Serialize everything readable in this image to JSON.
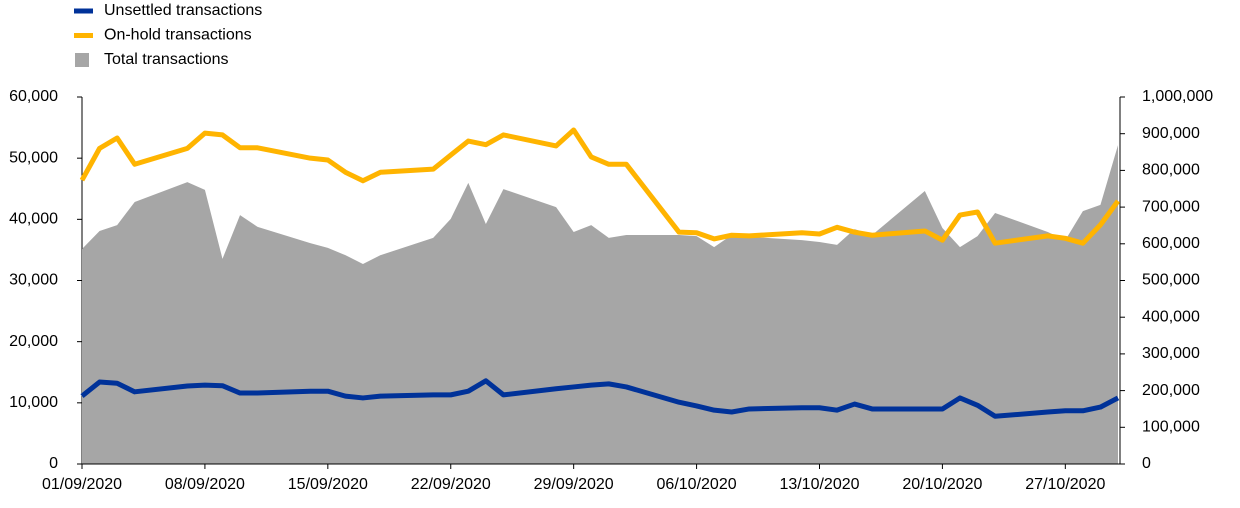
{
  "chart_data": {
    "type": "line",
    "x": [
      "01/09/2020",
      "02/09/2020",
      "03/09/2020",
      "04/09/2020",
      "07/09/2020",
      "08/09/2020",
      "09/09/2020",
      "10/09/2020",
      "11/09/2020",
      "14/09/2020",
      "15/09/2020",
      "16/09/2020",
      "17/09/2020",
      "18/09/2020",
      "21/09/2020",
      "22/09/2020",
      "23/09/2020",
      "24/09/2020",
      "25/09/2020",
      "28/09/2020",
      "29/09/2020",
      "30/09/2020",
      "01/10/2020",
      "02/10/2020",
      "05/10/2020",
      "06/10/2020",
      "07/10/2020",
      "08/10/2020",
      "09/10/2020",
      "12/10/2020",
      "13/10/2020",
      "14/10/2020",
      "15/10/2020",
      "16/10/2020",
      "19/10/2020",
      "20/10/2020",
      "21/10/2020",
      "22/10/2020",
      "23/10/2020",
      "26/10/2020",
      "27/10/2020",
      "28/10/2020",
      "29/10/2020",
      "30/10/2020"
    ],
    "series": [
      {
        "name": "Unsettled transactions",
        "color": "#003299",
        "values": [
          11100,
          13400,
          13200,
          11800,
          12750,
          12900,
          12800,
          11600,
          11600,
          11900,
          11900,
          11100,
          10800,
          11100,
          11300,
          11300,
          11900,
          13600,
          11300,
          12300,
          12600,
          12900,
          13100,
          12600,
          10100,
          9500,
          8800,
          8500,
          9000,
          9200,
          9200,
          8800,
          9800,
          9000,
          9000,
          9000,
          10800,
          9600,
          7800,
          8500,
          8700,
          8700,
          9300,
          10800
        ]
      },
      {
        "name": "On-hold transactions",
        "color": "#ffb400",
        "values": [
          46400,
          51600,
          53300,
          49000,
          51600,
          54100,
          53800,
          51700,
          51700,
          50000,
          49700,
          47700,
          46300,
          47700,
          48200,
          50500,
          52800,
          52200,
          53800,
          52000,
          54600,
          50200,
          49000,
          49000,
          37900,
          37800,
          36800,
          37400,
          37300,
          37800,
          37600,
          38700,
          37900,
          37400,
          38100,
          36600,
          40700,
          41200,
          36100,
          37300,
          36900,
          36100,
          39100,
          43000
        ]
      },
      {
        "name": "Total transactions",
        "color": "#a6a6a6",
        "type": "area",
        "axis": "y2",
        "values": [
          586000,
          635000,
          651000,
          714000,
          768000,
          747000,
          559000,
          678000,
          646000,
          602000,
          589000,
          569000,
          545000,
          569000,
          616000,
          668000,
          766000,
          654000,
          749000,
          700000,
          632000,
          651000,
          616000,
          624000,
          624000,
          621000,
          591000,
          624000,
          619000,
          610000,
          605000,
          597000,
          640000,
          624000,
          744000,
          643000,
          591000,
          621000,
          684000,
          632000,
          610000,
          689000,
          706000,
          869000
        ]
      }
    ],
    "xticks": [
      "01/09/2020",
      "08/09/2020",
      "15/09/2020",
      "22/09/2020",
      "29/09/2020",
      "06/10/2020",
      "13/10/2020",
      "20/10/2020",
      "27/10/2020"
    ],
    "ylim": [
      0,
      60000
    ],
    "yticks": [
      0,
      {
        "value": 10000,
        "label": "10,000"
      },
      {
        "value": 20000,
        "label": "20,000"
      },
      {
        "value": 30000,
        "label": "30,000"
      },
      {
        "value": 40000,
        "label": "40,000"
      },
      {
        "value": 50000,
        "label": "50,000"
      },
      {
        "value": 60000,
        "label": "60,000"
      }
    ],
    "y2lim": [
      0,
      1000000
    ],
    "y2ticks": [
      0,
      {
        "value": 100000,
        "label": "100,000"
      },
      {
        "value": 200000,
        "label": "200,000"
      },
      {
        "value": 300000,
        "label": "300,000"
      },
      {
        "value": 400000,
        "label": "400,000"
      },
      {
        "value": 500000,
        "label": "500,000"
      },
      {
        "value": 600000,
        "label": "600,000"
      },
      {
        "value": 700000,
        "label": "700,000"
      },
      {
        "value": 800000,
        "label": "800,000"
      },
      {
        "value": 900000,
        "label": "900,000"
      },
      {
        "value": 1000000,
        "label": "1,000,000"
      }
    ]
  }
}
